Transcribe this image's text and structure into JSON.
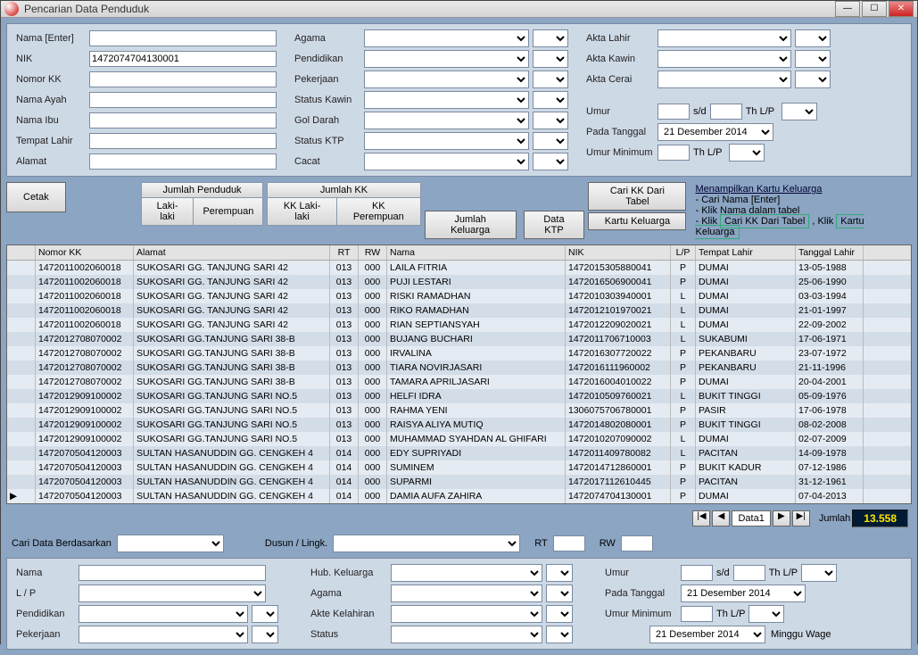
{
  "window": {
    "title": "Pencarian Data Penduduk"
  },
  "search": {
    "labels": {
      "nama": "Nama [Enter]",
      "nik": "NIK",
      "nomorKK": "Nomor KK",
      "namaAyah": "Nama Ayah",
      "namaIbu": "Nama Ibu",
      "tempatLahir": "Tempat Lahir",
      "alamat": "Alamat",
      "agama": "Agama",
      "pendidikan": "Pendidikan",
      "pekerjaan": "Pekerjaan",
      "statusKawin": "Status Kawin",
      "golDarah": "Gol Darah",
      "statusKTP": "Status KTP",
      "cacat": "Cacat",
      "aktaLahir": "Akta Lahir",
      "aktaKawin": "Akta Kawin",
      "aktaCerai": "Akta Cerai",
      "umur": "Umur",
      "sd": "s/d",
      "thlp": "Th  L/P",
      "padaTanggal": "Pada Tanggal",
      "umurMin": "Umur Minimum"
    },
    "values": {
      "nik": "1472074704130001",
      "padaTanggal": "21 Desember 2014"
    }
  },
  "actions": {
    "cetak": "Cetak",
    "jumlahPenduduk": "Jumlah Penduduk",
    "lakiLaki": "Laki-laki",
    "perempuan": "Perempuan",
    "jumlahKK": "Jumlah KK",
    "kkLaki": "KK Laki-laki",
    "kkPerempuan": "KK Perempuan",
    "jumlahKeluarga": "Jumlah Keluarga",
    "dataKTP": "Data KTP",
    "cariKKTabel": "Cari KK Dari Tabel",
    "kartuKeluarga": "Kartu Keluarga"
  },
  "info": {
    "title": "Menampilkan Kartu Keluarga",
    "l1": "Cari Nama [Enter]",
    "l2": "Klik Nama dalam tabel",
    "l3a": "Klik",
    "l3b": "Cari KK Dari Tabel",
    "l3c": ", Klik",
    "l3d": "Kartu Keluarga"
  },
  "grid": {
    "headers": {
      "kk": "Nomor KK",
      "alamat": "Alamat",
      "rt": "RT",
      "rw": "RW",
      "nama": "Nama",
      "nik": "NIK",
      "lp": "L/P",
      "tempat": "Tempat Lahir",
      "tgl": "Tanggal Lahir"
    },
    "rows": [
      {
        "kk": "1472011002060018",
        "alamat": "SUKOSARI GG. TANJUNG SARI 42",
        "rt": "013",
        "rw": "000",
        "nama": "LAILA FITRIA",
        "nik": "1472015305880041",
        "lp": "P",
        "tempat": "DUMAI",
        "tgl": "13-05-1988"
      },
      {
        "kk": "1472011002060018",
        "alamat": "SUKOSARI GG. TANJUNG SARI 42",
        "rt": "013",
        "rw": "000",
        "nama": "PUJI LESTARI",
        "nik": "1472016506900041",
        "lp": "P",
        "tempat": "DUMAI",
        "tgl": "25-06-1990"
      },
      {
        "kk": "1472011002060018",
        "alamat": "SUKOSARI GG. TANJUNG SARI 42",
        "rt": "013",
        "rw": "000",
        "nama": "RISKI RAMADHAN",
        "nik": "1472010303940001",
        "lp": "L",
        "tempat": "DUMAI",
        "tgl": "03-03-1994"
      },
      {
        "kk": "1472011002060018",
        "alamat": "SUKOSARI GG. TANJUNG SARI 42",
        "rt": "013",
        "rw": "000",
        "nama": "RIKO RAMADHAN",
        "nik": "1472012101970021",
        "lp": "L",
        "tempat": "DUMAI",
        "tgl": "21-01-1997"
      },
      {
        "kk": "1472011002060018",
        "alamat": "SUKOSARI GG. TANJUNG SARI 42",
        "rt": "013",
        "rw": "000",
        "nama": "RIAN SEPTIANSYAH",
        "nik": "1472012209020021",
        "lp": "L",
        "tempat": "DUMAI",
        "tgl": "22-09-2002"
      },
      {
        "kk": "1472012708070002",
        "alamat": "SUKOSARI GG.TANJUNG SARI 38-B",
        "rt": "013",
        "rw": "000",
        "nama": "BUJANG BUCHARI",
        "nik": "1472011706710003",
        "lp": "L",
        "tempat": "SUKABUMI",
        "tgl": "17-06-1971"
      },
      {
        "kk": "1472012708070002",
        "alamat": "SUKOSARI GG.TANJUNG SARI 38-B",
        "rt": "013",
        "rw": "000",
        "nama": "IRVALINA",
        "nik": "1472016307720022",
        "lp": "P",
        "tempat": "PEKANBARU",
        "tgl": "23-07-1972"
      },
      {
        "kk": "1472012708070002",
        "alamat": "SUKOSARI GG.TANJUNG SARI 38-B",
        "rt": "013",
        "rw": "000",
        "nama": "TIARA NOVIRJASARI",
        "nik": "1472016111960002",
        "lp": "P",
        "tempat": "PEKANBARU",
        "tgl": "21-11-1996"
      },
      {
        "kk": "1472012708070002",
        "alamat": "SUKOSARI GG.TANJUNG SARI 38-B",
        "rt": "013",
        "rw": "000",
        "nama": "TAMARA APRILJASARI",
        "nik": "1472016004010022",
        "lp": "P",
        "tempat": "DUMAI",
        "tgl": "20-04-2001"
      },
      {
        "kk": "1472012909100002",
        "alamat": "SUKOSARI GG.TANJUNG SARI NO.5",
        "rt": "013",
        "rw": "000",
        "nama": "HELFI IDRA",
        "nik": "1472010509760021",
        "lp": "L",
        "tempat": "BUKIT TINGGI",
        "tgl": "05-09-1976"
      },
      {
        "kk": "1472012909100002",
        "alamat": "SUKOSARI GG.TANJUNG SARI NO.5",
        "rt": "013",
        "rw": "000",
        "nama": "RAHMA YENI",
        "nik": "1306075706780001",
        "lp": "P",
        "tempat": "PASIR",
        "tgl": "17-06-1978"
      },
      {
        "kk": "1472012909100002",
        "alamat": "SUKOSARI GG.TANJUNG SARI NO.5",
        "rt": "013",
        "rw": "000",
        "nama": "RAISYA ALIYA MUTIQ",
        "nik": "1472014802080001",
        "lp": "P",
        "tempat": "BUKIT TINGGI",
        "tgl": "08-02-2008"
      },
      {
        "kk": "1472012909100002",
        "alamat": "SUKOSARI GG.TANJUNG SARI NO.5",
        "rt": "013",
        "rw": "000",
        "nama": "MUHAMMAD SYAHDAN AL GHIFARI",
        "nik": "1472010207090002",
        "lp": "L",
        "tempat": "DUMAI",
        "tgl": "02-07-2009"
      },
      {
        "kk": "1472070504120003",
        "alamat": "SULTAN HASANUDDIN GG. CENGKEH 4",
        "rt": "014",
        "rw": "000",
        "nama": "EDY SUPRIYADI",
        "nik": "1472011409780082",
        "lp": "L",
        "tempat": "PACITAN",
        "tgl": "14-09-1978"
      },
      {
        "kk": "1472070504120003",
        "alamat": "SULTAN HASANUDDIN GG. CENGKEH 4",
        "rt": "014",
        "rw": "000",
        "nama": "SUMINEM",
        "nik": "1472014712860001",
        "lp": "P",
        "tempat": "BUKIT KADUR",
        "tgl": "07-12-1986"
      },
      {
        "kk": "1472070504120003",
        "alamat": "SULTAN HASANUDDIN GG. CENGKEH 4",
        "rt": "014",
        "rw": "000",
        "nama": "SUPARMI",
        "nik": "1472017112610445",
        "lp": "P",
        "tempat": "PACITAN",
        "tgl": "31-12-1961"
      },
      {
        "kk": "1472070504120003",
        "alamat": "SULTAN HASANUDDIN GG. CENGKEH 4",
        "rt": "014",
        "rw": "000",
        "nama": "DAMIA AUFA ZAHIRA",
        "nik": "1472074704130001",
        "lp": "P",
        "tempat": "DUMAI",
        "tgl": "07-04-2013"
      }
    ]
  },
  "nav": {
    "label": "Data1",
    "jumlah": "Jumlah",
    "count": "13.558"
  },
  "bottom": {
    "cariData": "Cari Data Berdasarkan",
    "dusun": "Dusun / Lingk.",
    "rt": "RT",
    "rw": "RW",
    "nama": "Nama",
    "lp": "L / P",
    "pendidikan": "Pendidikan",
    "pekerjaan": "Pekerjaan",
    "hubKeluarga": "Hub. Keluarga",
    "agama": "Agama",
    "akteKelahiran": "Akte Kelahiran",
    "status": "Status",
    "umur": "Umur",
    "sd": "s/d",
    "thlp": "Th  L/P",
    "padaTanggal": "Pada Tanggal",
    "tanggal": "21 Desember 2014",
    "umurMin": "Umur Minimum",
    "tanggal2": "21 Desember 2014",
    "hari": "Minggu Wage"
  }
}
